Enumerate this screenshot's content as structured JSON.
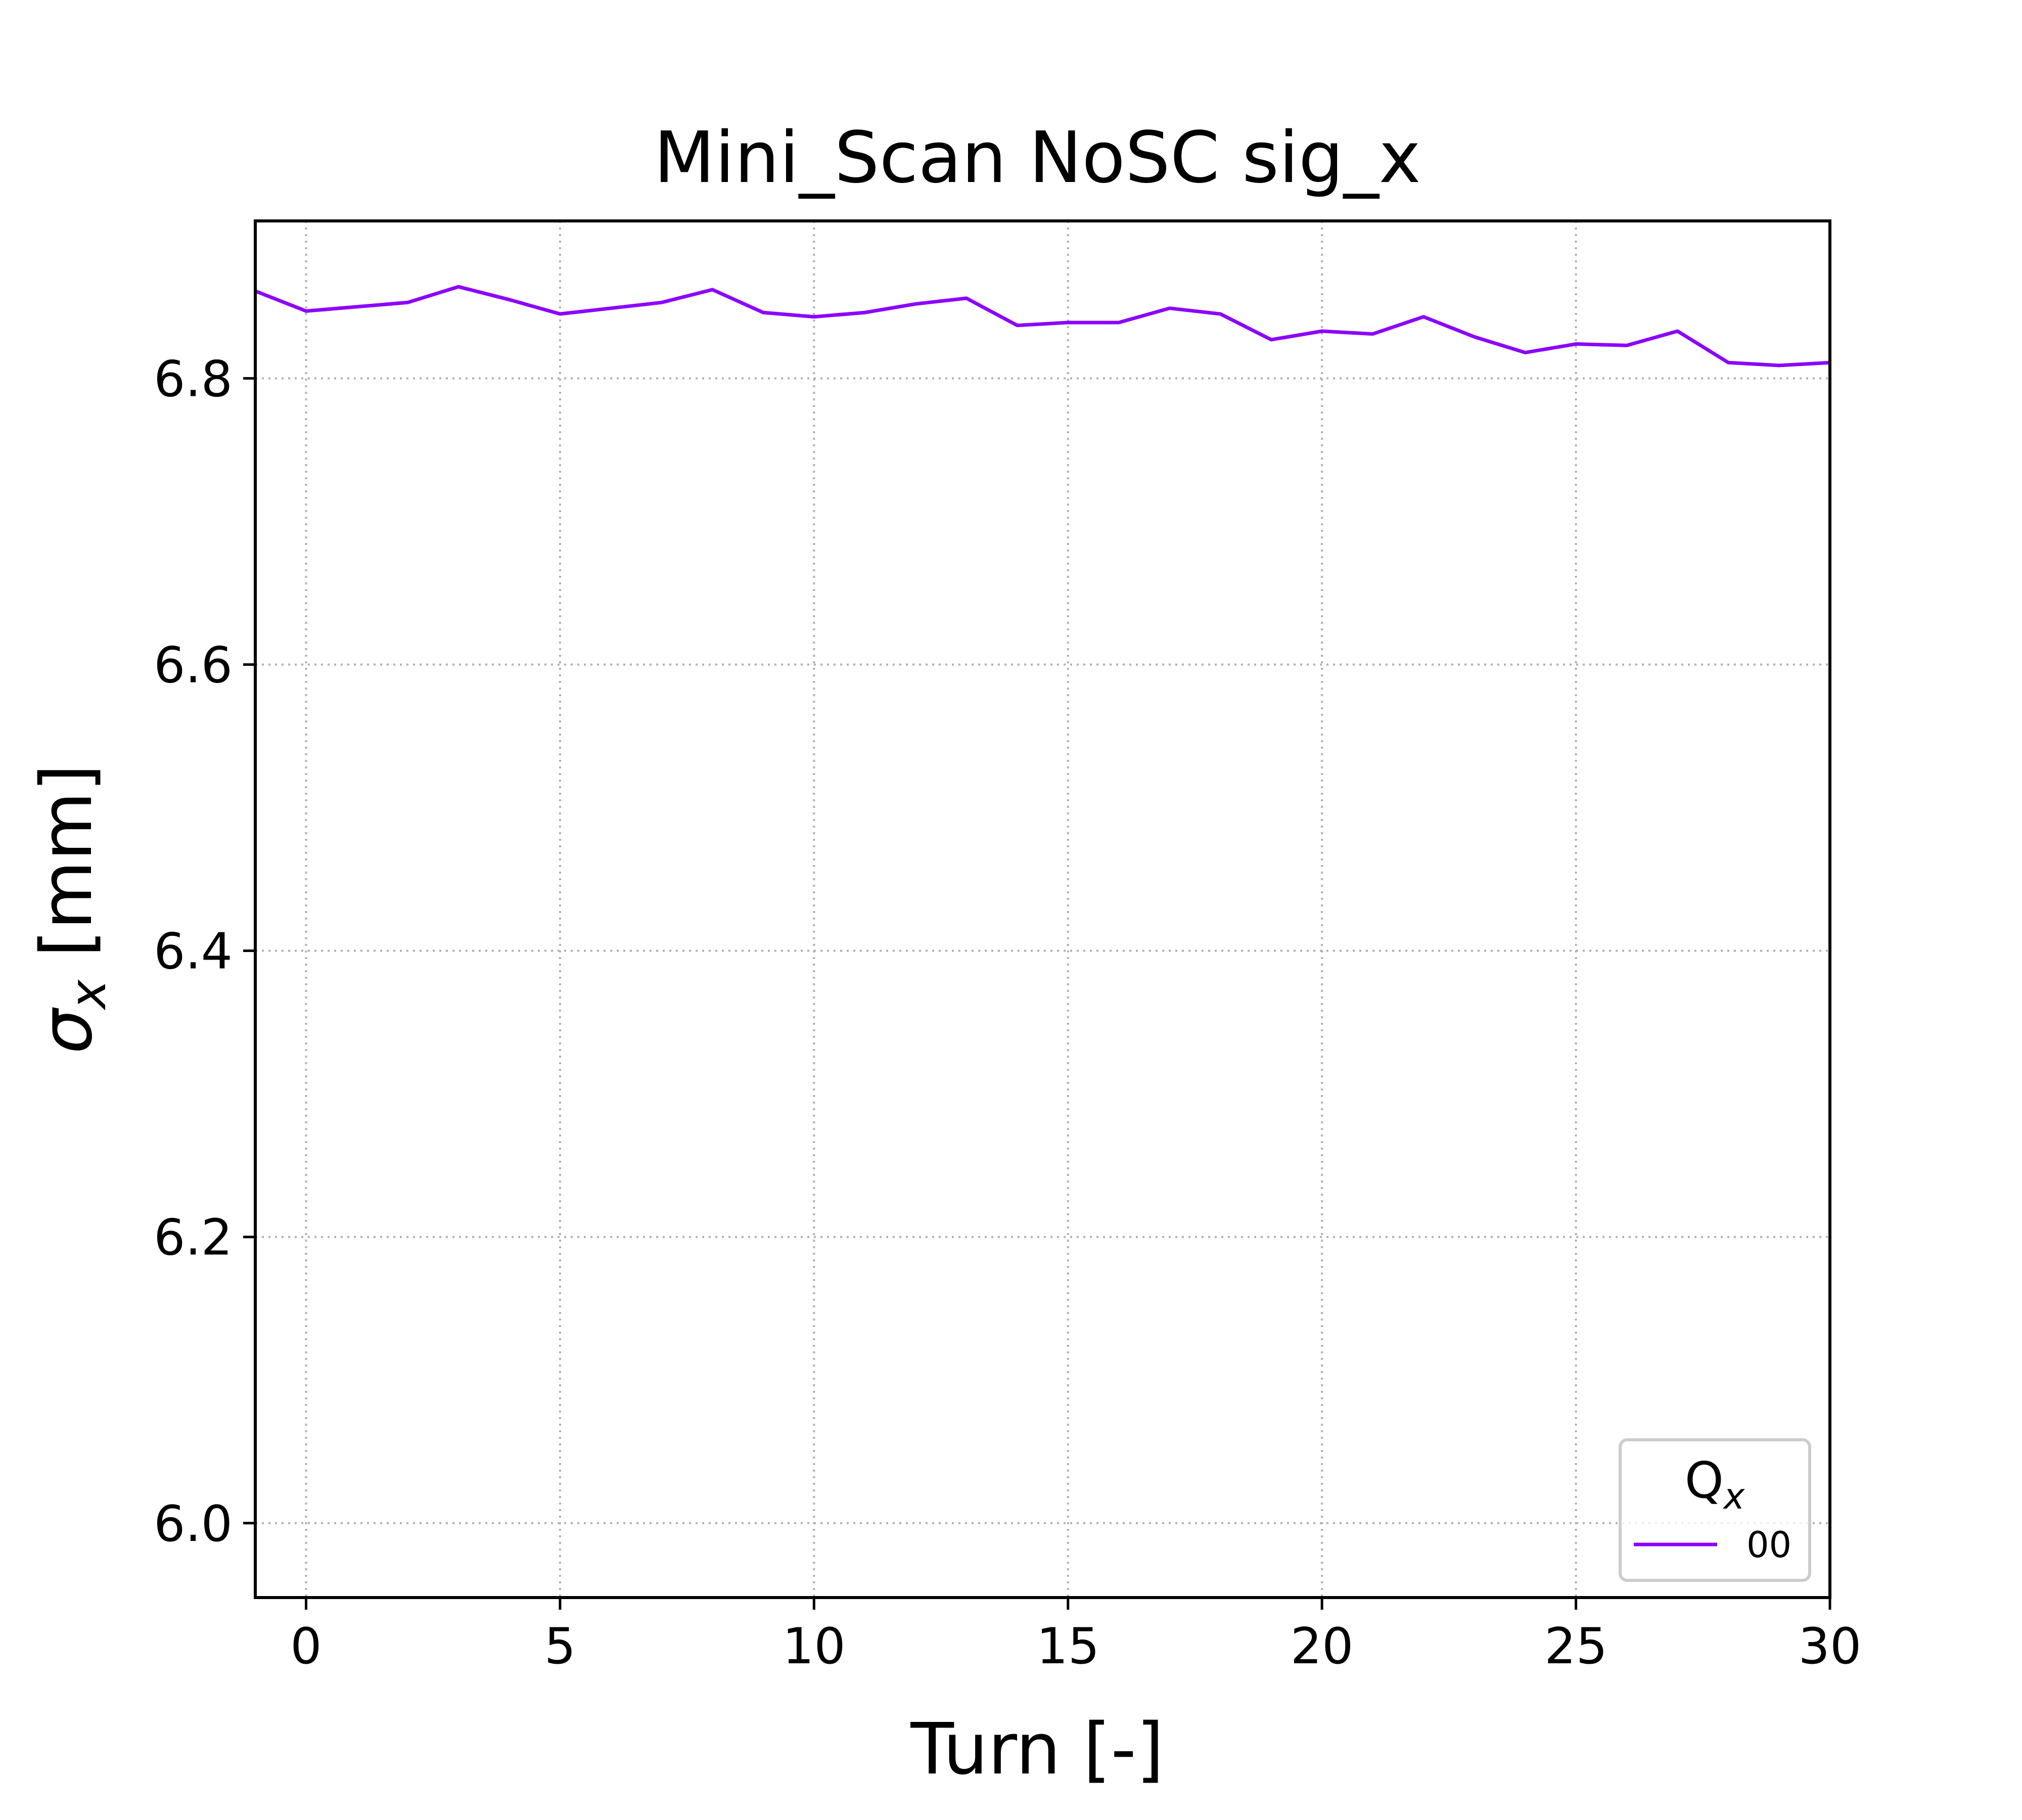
{
  "chart_data": {
    "type": "line",
    "title": "Mini_Scan NoSC sig_x",
    "xlabel": "Turn [-]",
    "ylabel_symbol": "σ",
    "ylabel_subscript": "x",
    "ylabel_unit": " [mm]",
    "xlim": [
      -1,
      30
    ],
    "ylim": [
      5.948,
      6.91
    ],
    "xticks": [
      0,
      5,
      10,
      15,
      20,
      25,
      30
    ],
    "yticks": [
      6.0,
      6.2,
      6.4,
      6.6,
      6.8
    ],
    "grid": true,
    "legend": {
      "placement": "lower-right",
      "title_main": "Q",
      "title_subscript": "x"
    },
    "series": [
      {
        "name": "00",
        "color": "#8b00ff",
        "x": [
          -1,
          0,
          1,
          2,
          3,
          4,
          5,
          6,
          7,
          8,
          9,
          10,
          11,
          12,
          13,
          14,
          15,
          16,
          17,
          18,
          19,
          20,
          21,
          22,
          23,
          24,
          25,
          26,
          27,
          28,
          29,
          30
        ],
        "y": [
          6.861,
          6.847,
          6.85,
          6.853,
          6.864,
          6.855,
          6.845,
          6.849,
          6.853,
          6.862,
          6.846,
          6.843,
          6.846,
          6.852,
          6.856,
          6.837,
          6.839,
          6.839,
          6.849,
          6.845,
          6.827,
          6.833,
          6.831,
          6.843,
          6.829,
          6.818,
          6.824,
          6.823,
          6.833,
          6.811,
          6.809,
          6.811
        ]
      }
    ]
  }
}
